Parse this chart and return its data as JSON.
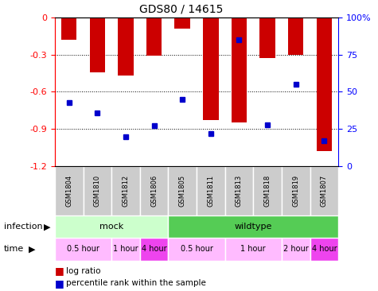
{
  "title": "GDS80 / 14615",
  "samples": [
    "GSM1804",
    "GSM1810",
    "GSM1812",
    "GSM1806",
    "GSM1805",
    "GSM1811",
    "GSM1813",
    "GSM1818",
    "GSM1819",
    "GSM1807"
  ],
  "log_ratios": [
    -0.18,
    -0.44,
    -0.47,
    -0.31,
    -0.09,
    -0.83,
    -0.85,
    -0.33,
    -0.3,
    -1.08
  ],
  "percentile_ranks": [
    43,
    36,
    20,
    27,
    45,
    22,
    85,
    28,
    55,
    17
  ],
  "ylim": [
    -1.2,
    0
  ],
  "yticks": [
    0,
    -0.3,
    -0.6,
    -0.9,
    -1.2
  ],
  "y2ticks": [
    0,
    25,
    50,
    75,
    100
  ],
  "bar_color": "#cc0000",
  "dot_color": "#0000cc",
  "infection_mock_color": "#ccffcc",
  "infection_wildtype_color": "#55cc55",
  "infection_labels": [
    {
      "label": "mock",
      "start": 0,
      "end": 4
    },
    {
      "label": "wildtype",
      "start": 4,
      "end": 10
    }
  ],
  "time_segments": [
    {
      "label": "0.5 hour",
      "start": 0,
      "end": 2,
      "color": "#ffbbff"
    },
    {
      "label": "1 hour",
      "start": 2,
      "end": 3,
      "color": "#ffbbff"
    },
    {
      "label": "4 hour",
      "start": 3,
      "end": 4,
      "color": "#ee44ee"
    },
    {
      "label": "0.5 hour",
      "start": 4,
      "end": 6,
      "color": "#ffbbff"
    },
    {
      "label": "1 hour",
      "start": 6,
      "end": 8,
      "color": "#ffbbff"
    },
    {
      "label": "2 hour",
      "start": 8,
      "end": 9,
      "color": "#ffbbff"
    },
    {
      "label": "4 hour",
      "start": 9,
      "end": 10,
      "color": "#ee44ee"
    }
  ]
}
